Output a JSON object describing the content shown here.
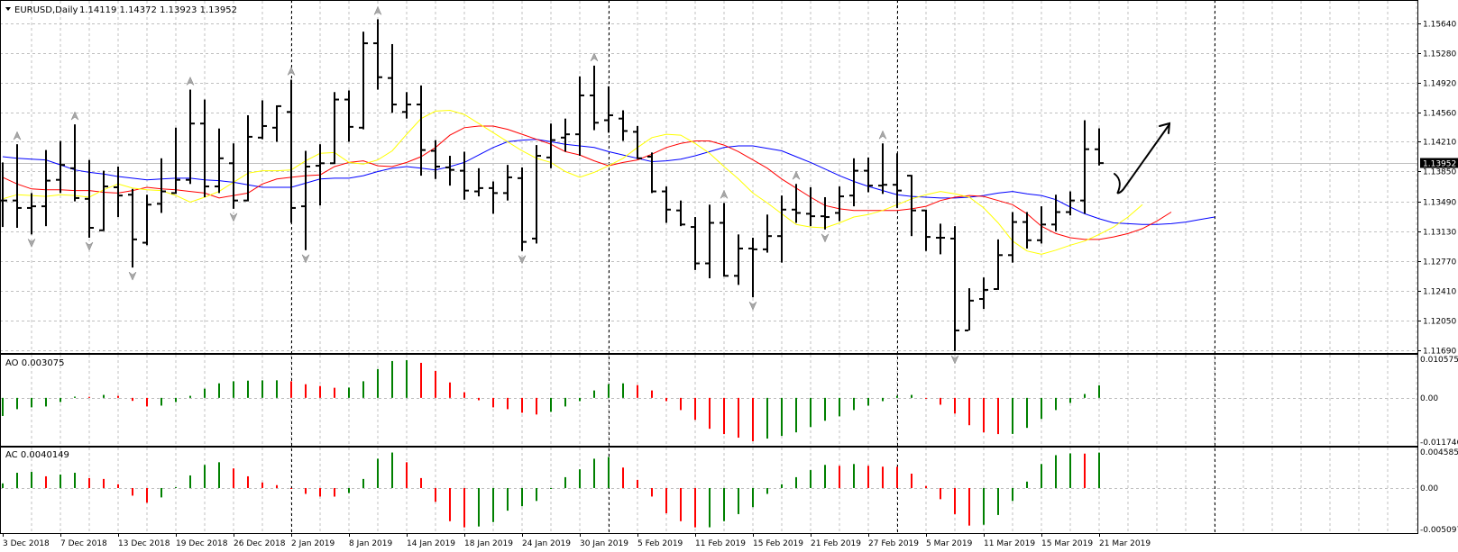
{
  "chart_data": [
    {
      "type": "ohlc",
      "title": "EURUSD,Daily",
      "last_ohlc": [
        "1.14119",
        "1.14372",
        "1.13923",
        "1.13952"
      ],
      "current_price_label": "1.13952",
      "current_price": 1.13952,
      "ylim": [
        1.1169,
        1.1564
      ],
      "y_ticks": [
        "1.15640",
        "1.15280",
        "1.14920",
        "1.14560",
        "1.14210",
        "1.13850",
        "1.13490",
        "1.13130",
        "1.12770",
        "1.12410",
        "1.12050",
        "1.11690"
      ],
      "grid": true,
      "colors": {
        "bars": "#000000",
        "jaw": "#0000ff",
        "teeth": "#ff0000",
        "lips": "#ffff00",
        "fractal": "#9a9a9a",
        "grid": "#c0c0c0"
      },
      "bars_columns": [
        "date",
        "open",
        "high",
        "low",
        "close"
      ],
      "bars": [
        [
          "3 Dec 2018",
          1.135,
          1.1396,
          1.1318,
          1.135
        ],
        [
          "4 Dec 2018",
          1.135,
          1.1418,
          1.1317,
          1.1341
        ],
        [
          "5 Dec 2018",
          1.1341,
          1.1359,
          1.1309,
          1.1343
        ],
        [
          "6 Dec 2018",
          1.1343,
          1.1411,
          1.1319,
          1.1374
        ],
        [
          "7 Dec 2018",
          1.1375,
          1.1422,
          1.1359,
          1.1393
        ],
        [
          "10 Dec 2018",
          1.1389,
          1.1442,
          1.1349,
          1.1353
        ],
        [
          "11 Dec 2018",
          1.1352,
          1.1399,
          1.1305,
          1.1317
        ],
        [
          "12 Dec 2018",
          1.1314,
          1.1386,
          1.1313,
          1.1367
        ],
        [
          "13 Dec 2018",
          1.1366,
          1.1391,
          1.133,
          1.1356
        ],
        [
          "14 Dec 2018",
          1.1357,
          1.1364,
          1.1269,
          1.1303
        ],
        [
          "17 Dec 2018",
          1.1299,
          1.1357,
          1.1296,
          1.1345
        ],
        [
          "18 Dec 2018",
          1.1346,
          1.1401,
          1.1335,
          1.1361
        ],
        [
          "19 Dec 2018",
          1.1359,
          1.1438,
          1.1358,
          1.1375
        ],
        [
          "20 Dec 2018",
          1.1375,
          1.1484,
          1.137,
          1.1443
        ],
        [
          "21 Dec 2018",
          1.1443,
          1.1472,
          1.1354,
          1.1367
        ],
        [
          "24 Dec 2018",
          1.1367,
          1.1437,
          1.1359,
          1.1401
        ],
        [
          "26 Dec 2018",
          1.1395,
          1.1419,
          1.134,
          1.135
        ],
        [
          "27 Dec 2018",
          1.135,
          1.1453,
          1.1349,
          1.1427
        ],
        [
          "28 Dec 2018",
          1.1426,
          1.1471,
          1.1424,
          1.144
        ],
        [
          "31 Dec 2018",
          1.1438,
          1.1465,
          1.1421,
          1.1464
        ],
        [
          "2 Jan 2019",
          1.1457,
          1.1496,
          1.1323,
          1.1341
        ],
        [
          "3 Jan 2019",
          1.1343,
          1.141,
          1.129,
          1.1391
        ],
        [
          "4 Jan 2019",
          1.1392,
          1.1418,
          1.1344,
          1.1395
        ],
        [
          "7 Jan 2019",
          1.1395,
          1.1481,
          1.1394,
          1.1472
        ],
        [
          "8 Jan 2019",
          1.1472,
          1.1483,
          1.1421,
          1.1439
        ],
        [
          "9 Jan 2019",
          1.1438,
          1.1554,
          1.1436,
          1.154
        ],
        [
          "10 Jan 2019",
          1.154,
          1.1569,
          1.1484,
          1.1499
        ],
        [
          "11 Jan 2019",
          1.1498,
          1.1539,
          1.1456,
          1.1466
        ],
        [
          "14 Jan 2019",
          1.1457,
          1.1481,
          1.1449,
          1.1466
        ],
        [
          "15 Jan 2019",
          1.1466,
          1.1489,
          1.138,
          1.1411
        ],
        [
          "16 Jan 2019",
          1.141,
          1.1423,
          1.1376,
          1.1391
        ],
        [
          "17 Jan 2019",
          1.139,
          1.1404,
          1.1368,
          1.1387
        ],
        [
          "18 Jan 2019",
          1.1386,
          1.1409,
          1.1351,
          1.1362
        ],
        [
          "21 Jan 2019",
          1.1361,
          1.1389,
          1.1355,
          1.1365
        ],
        [
          "22 Jan 2019",
          1.1365,
          1.1373,
          1.1334,
          1.1359
        ],
        [
          "23 Jan 2019",
          1.1359,
          1.1393,
          1.135,
          1.1378
        ],
        [
          "24 Jan 2019",
          1.1377,
          1.139,
          1.1289,
          1.13
        ],
        [
          "25 Jan 2019",
          1.1304,
          1.1417,
          1.1298,
          1.1404
        ],
        [
          "28 Jan 2019",
          1.1402,
          1.1443,
          1.1389,
          1.1423
        ],
        [
          "29 Jan 2019",
          1.1426,
          1.1449,
          1.1409,
          1.143
        ],
        [
          "30 Jan 2019",
          1.143,
          1.15,
          1.1404,
          1.1477
        ],
        [
          "31 Jan 2019",
          1.1477,
          1.1513,
          1.1435,
          1.1444
        ],
        [
          "1 Feb 2019",
          1.1447,
          1.1488,
          1.1432,
          1.1453
        ],
        [
          "4 Feb 2019",
          1.1449,
          1.1459,
          1.1422,
          1.1434
        ],
        [
          "5 Feb 2019",
          1.1433,
          1.144,
          1.14,
          1.1401
        ],
        [
          "6 Feb 2019",
          1.1403,
          1.1408,
          1.1359,
          1.1361
        ],
        [
          "7 Feb 2019",
          1.1361,
          1.1367,
          1.1323,
          1.1339
        ],
        [
          "8 Feb 2019",
          1.1338,
          1.135,
          1.1319,
          1.1321
        ],
        [
          "11 Feb 2019",
          1.1318,
          1.133,
          1.1266,
          1.1274
        ],
        [
          "12 Feb 2019",
          1.1274,
          1.1345,
          1.1256,
          1.1323
        ],
        [
          "13 Feb 2019",
          1.1323,
          1.1347,
          1.1258,
          1.1259
        ],
        [
          "14 Feb 2019",
          1.1259,
          1.1309,
          1.1248,
          1.1292
        ],
        [
          "15 Feb 2019",
          1.1292,
          1.1305,
          1.1233,
          1.1291
        ],
        [
          "18 Feb 2019",
          1.1291,
          1.1333,
          1.1287,
          1.1307
        ],
        [
          "19 Feb 2019",
          1.1307,
          1.1356,
          1.1275,
          1.1339
        ],
        [
          "20 Feb 2019",
          1.1339,
          1.137,
          1.1323,
          1.1335
        ],
        [
          "21 Feb 2019",
          1.1334,
          1.1366,
          1.1319,
          1.1331
        ],
        [
          "22 Feb 2019",
          1.1331,
          1.1354,
          1.1315,
          1.133
        ],
        [
          "25 Feb 2019",
          1.1335,
          1.1367,
          1.1325,
          1.1355
        ],
        [
          "26 Feb 2019",
          1.1356,
          1.1401,
          1.1343,
          1.1386
        ],
        [
          "27 Feb 2019",
          1.1386,
          1.1402,
          1.136,
          1.1368
        ],
        [
          "28 Feb 2019",
          1.1368,
          1.1419,
          1.1358,
          1.1369
        ],
        [
          "1 Mar 2019",
          1.1369,
          1.1407,
          1.1341,
          1.1362
        ],
        [
          "4 Mar 2019",
          1.138,
          1.1381,
          1.1307,
          1.1338
        ],
        [
          "5 Mar 2019",
          1.1338,
          1.1339,
          1.1289,
          1.1306
        ],
        [
          "6 Mar 2019",
          1.1305,
          1.1322,
          1.1285,
          1.1305
        ],
        [
          "7 Mar 2019",
          1.1304,
          1.1319,
          1.1168,
          1.1193
        ],
        [
          "8 Mar 2019",
          1.1193,
          1.1244,
          1.1193,
          1.1229
        ],
        [
          "11 Mar 2019",
          1.1231,
          1.1257,
          1.1219,
          1.1242
        ],
        [
          "12 Mar 2019",
          1.1243,
          1.1303,
          1.1242,
          1.1284
        ],
        [
          "13 Mar 2019",
          1.1284,
          1.1336,
          1.1275,
          1.1324
        ],
        [
          "14 Mar 2019",
          1.1324,
          1.1336,
          1.1292,
          1.1302
        ],
        [
          "15 Mar 2019",
          1.1302,
          1.1343,
          1.1298,
          1.1321
        ],
        [
          "18 Mar 2019",
          1.1321,
          1.1357,
          1.1313,
          1.1336
        ],
        [
          "19 Mar 2019",
          1.1336,
          1.1361,
          1.1332,
          1.135
        ],
        [
          "20 Mar 2019",
          1.135,
          1.1447,
          1.1334,
          1.1412
        ],
        [
          "21 Mar 2019",
          1.14119,
          1.14372,
          1.13923,
          1.13952
        ]
      ],
      "fractals_up": [
        "4 Dec 2018",
        "10 Dec 2018",
        "20 Dec 2018",
        "2 Jan 2019",
        "10 Jan 2019",
        "31 Jan 2019",
        "13 Feb 2019",
        "20 Feb 2019",
        "28 Feb 2019"
      ],
      "fractals_down": [
        "5 Dec 2018",
        "11 Dec 2018",
        "14 Dec 2018",
        "26 Dec 2018",
        "3 Jan 2019",
        "24 Jan 2019",
        "15 Feb 2019",
        "22 Feb 2019",
        "7 Mar 2019"
      ],
      "alligator": {
        "jaw": [
          1.1403,
          1.1401,
          1.14,
          1.1399,
          1.1393,
          1.1387,
          1.1384,
          1.1382,
          1.1379,
          1.1377,
          1.1375,
          1.1376,
          1.1377,
          1.1377,
          1.1375,
          1.1374,
          1.1372,
          1.1369,
          1.1366,
          1.1366,
          1.1366,
          1.1371,
          1.1376,
          1.1377,
          1.1377,
          1.138,
          1.1385,
          1.1389,
          1.1391,
          1.1389,
          1.1387,
          1.1391,
          1.1396,
          1.1405,
          1.1414,
          1.1421,
          1.1423,
          1.1424,
          1.1421,
          1.1418,
          1.1416,
          1.1414,
          1.1409,
          1.1405,
          1.1401,
          1.1397,
          1.1398,
          1.14,
          1.1404,
          1.1409,
          1.1414,
          1.1416,
          1.1416,
          1.1413,
          1.141,
          1.1403,
          1.1396,
          1.1388,
          1.138,
          1.1373,
          1.1367,
          1.1362,
          1.1357,
          1.1355,
          1.1354,
          1.1353,
          1.1353,
          1.1354,
          1.1356,
          1.1359,
          1.1361,
          1.1358,
          1.1356,
          1.1351,
          1.1342,
          1.1334,
          1.1328,
          1.1323,
          1.1322,
          1.1321,
          1.1321,
          1.1322,
          1.1324,
          1.1327,
          1.133
        ],
        "teeth": [
          1.1378,
          1.137,
          1.1364,
          1.1363,
          1.1363,
          1.1362,
          1.1362,
          1.136,
          1.1359,
          1.1362,
          1.1366,
          1.1364,
          1.1363,
          1.1361,
          1.1359,
          1.1353,
          1.1356,
          1.1359,
          1.137,
          1.1376,
          1.1378,
          1.138,
          1.1381,
          1.1391,
          1.1396,
          1.1398,
          1.1392,
          1.1391,
          1.1396,
          1.1403,
          1.1414,
          1.1429,
          1.1438,
          1.144,
          1.144,
          1.1436,
          1.143,
          1.1424,
          1.1418,
          1.1409,
          1.1405,
          1.1398,
          1.1392,
          1.1396,
          1.1399,
          1.1406,
          1.1414,
          1.1419,
          1.1422,
          1.1422,
          1.1417,
          1.1409,
          1.1399,
          1.1389,
          1.1376,
          1.1365,
          1.1354,
          1.1344,
          1.134,
          1.1338,
          1.1338,
          1.1338,
          1.1338,
          1.134,
          1.1343,
          1.135,
          1.1354,
          1.1356,
          1.1355,
          1.135,
          1.1345,
          1.1334,
          1.1319,
          1.131,
          1.1305,
          1.1303,
          1.1303,
          1.1306,
          1.131,
          1.1316,
          1.1325,
          1.1336
        ],
        "lips": [
          1.1352,
          1.1357,
          1.1356,
          1.1355,
          1.1357,
          1.1356,
          1.1354,
          1.1363,
          1.137,
          1.1365,
          1.1363,
          1.1362,
          1.1356,
          1.1348,
          1.1354,
          1.1361,
          1.1372,
          1.1383,
          1.1386,
          1.1386,
          1.1387,
          1.1398,
          1.1407,
          1.1408,
          1.1396,
          1.1394,
          1.1399,
          1.141,
          1.143,
          1.1449,
          1.1458,
          1.1459,
          1.1454,
          1.1443,
          1.1432,
          1.1421,
          1.141,
          1.1401,
          1.1396,
          1.1385,
          1.1378,
          1.1384,
          1.1392,
          1.1401,
          1.1414,
          1.1426,
          1.143,
          1.1429,
          1.1419,
          1.1407,
          1.1391,
          1.1376,
          1.1359,
          1.1347,
          1.1334,
          1.1321,
          1.1318,
          1.1317,
          1.1323,
          1.133,
          1.1333,
          1.1338,
          1.1345,
          1.1352,
          1.1357,
          1.1361,
          1.1358,
          1.1354,
          1.1341,
          1.1323,
          1.1301,
          1.1289,
          1.1285,
          1.129,
          1.1296,
          1.1301,
          1.1309,
          1.1318,
          1.133,
          1.1345
        ]
      },
      "x_tick_labels": [
        "3 Dec 2018",
        "7 Dec 2018",
        "13 Dec 2018",
        "19 Dec 2018",
        "26 Dec 2018",
        "2 Jan 2019",
        "8 Jan 2019",
        "14 Jan 2019",
        "18 Jan 2019",
        "24 Jan 2019",
        "30 Jan 2019",
        "5 Feb 2019",
        "11 Feb 2019",
        "15 Feb 2019",
        "21 Feb 2019",
        "27 Feb 2019",
        "5 Mar 2019",
        "11 Mar 2019",
        "15 Mar 2019",
        "21 Mar 2019"
      ],
      "annotation": "hand-drawn black arrow pointing up-right"
    },
    {
      "type": "bar",
      "title": "AO 0.003075",
      "ylim": [
        -0.011746,
        0.010575
      ],
      "y_ticks": [
        "0.010575",
        "0.00",
        "-0.011746"
      ],
      "colors": {
        "up": "#008000",
        "down": "#ff0000"
      },
      "values": [
        -0.00445,
        -0.00277,
        -0.00233,
        -0.00211,
        -0.00102,
        0.0003,
        0.00025,
        0.00073,
        0.0005,
        -0.00073,
        -0.00211,
        -0.0019,
        -0.00102,
        0.0005,
        0.00226,
        0.00357,
        0.00408,
        0.00423,
        0.0043,
        0.00431,
        0.00408,
        0.00335,
        0.00292,
        0.00248,
        0.00252,
        0.00408,
        0.00707,
        0.00904,
        0.00926,
        0.0086,
        0.00663,
        0.00379,
        0.00139,
        -0.00058,
        -0.00233,
        -0.00277,
        -0.00365,
        -0.00408,
        -0.00343,
        -0.00211,
        -0.0008,
        0.00182,
        0.00335,
        0.00357,
        0.00313,
        0.00182,
        -0.0008,
        -0.00299,
        -0.0054,
        -0.00758,
        -0.00889,
        -0.00977,
        -0.01064,
        -0.00999,
        -0.00933,
        -0.00846,
        -0.00714,
        -0.00561,
        -0.00452,
        -0.00299,
        -0.0019,
        -0.0008,
        0.0005,
        0.00073,
        -0.00022,
        -0.00168,
        -0.00386,
        -0.00671,
        -0.00846,
        -0.00889,
        -0.00885,
        -0.00736,
        -0.00518,
        -0.00299,
        -0.00124,
        0.00095,
        0.003075
      ]
    },
    {
      "type": "bar",
      "title": "AC 0.0040149",
      "ylim": [
        -0.005097,
        0.0045852
      ],
      "y_ticks": [
        "0.0045852",
        "0.00",
        "-0.005097"
      ],
      "colors": {
        "up": "#008000",
        "down": "#ff0000"
      },
      "values": [
        0.00053,
        0.00173,
        0.00183,
        0.00133,
        0.00153,
        0.00173,
        0.00113,
        0.00103,
        0.00043,
        -0.00086,
        -0.00166,
        -0.00106,
        0.0001,
        0.00143,
        0.00262,
        0.00292,
        0.00222,
        0.00133,
        0.00063,
        0.00033,
        -7e-05,
        -0.00066,
        -0.00096,
        -0.00097,
        -0.00056,
        0.00103,
        0.00332,
        0.00402,
        0.00292,
        0.00113,
        -0.00156,
        -0.00375,
        -0.00445,
        -0.00435,
        -0.00385,
        -0.00256,
        -0.00206,
        -0.00146,
        -7e-05,
        0.00123,
        0.00212,
        0.00332,
        0.00352,
        0.00232,
        0.00093,
        -0.00096,
        -0.00286,
        -0.00375,
        -0.00445,
        -0.00444,
        -0.00375,
        -0.00295,
        -0.00216,
        -0.00066,
        0.00043,
        0.00123,
        0.00203,
        0.00262,
        0.00252,
        0.00272,
        0.00252,
        0.00242,
        0.00241,
        0.00163,
        0.00023,
        -0.00126,
        -0.00295,
        -0.00425,
        -0.00415,
        -0.00305,
        -0.00146,
        0.00073,
        0.00272,
        0.00372,
        0.00392,
        0.0039,
        0.0040149
      ]
    }
  ]
}
